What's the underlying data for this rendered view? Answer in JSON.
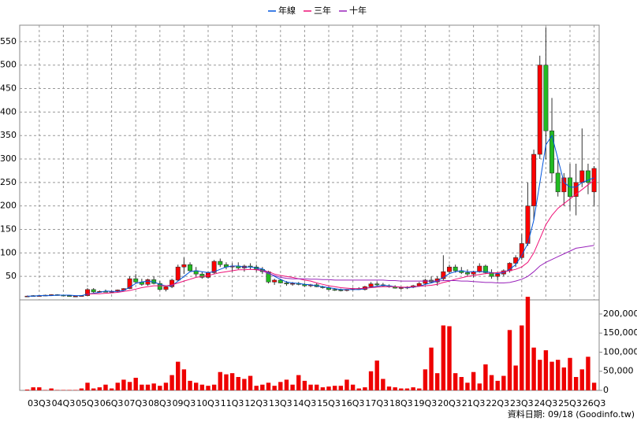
{
  "chart_data": {
    "type": "candlestick",
    "legend": [
      "年線",
      "三年",
      "十年"
    ],
    "footer": "資料日期: 09/18 (Goodinfo.tw)",
    "up_color": "#ff0000",
    "down_color": "#22bb22",
    "volume_color": "#ee0000",
    "grid": true,
    "categories": [
      null,
      null,
      "03Q3",
      null,
      null,
      null,
      "04Q3",
      null,
      null,
      null,
      "05Q3",
      null,
      null,
      null,
      "06Q3",
      null,
      null,
      null,
      "07Q3",
      null,
      null,
      null,
      "08Q3",
      null,
      null,
      null,
      "09Q3",
      null,
      null,
      null,
      "10Q3",
      null,
      null,
      null,
      "11Q3",
      null,
      null,
      null,
      "12Q3",
      null,
      null,
      null,
      "13Q3",
      null,
      null,
      null,
      "14Q3",
      null,
      null,
      null,
      "15Q3",
      null,
      null,
      null,
      "16Q3",
      null,
      null,
      null,
      "17Q3",
      null,
      null,
      null,
      "18Q3",
      null,
      null,
      null,
      "19Q3",
      null,
      null,
      null,
      "20Q3",
      null,
      null,
      null,
      "21Q3",
      null,
      null,
      null,
      "22Q3",
      null,
      null,
      null,
      "23Q3",
      null,
      null,
      null,
      "24Q3",
      null,
      null,
      null,
      "25Q3",
      null,
      null,
      null,
      "26Q3"
    ],
    "ohlc": [
      [
        8,
        9,
        7,
        8
      ],
      [
        8,
        10,
        7,
        9
      ],
      [
        9,
        10,
        8,
        9
      ],
      [
        9,
        11,
        8,
        10
      ],
      [
        10,
        12,
        9,
        11
      ],
      [
        11,
        12,
        9,
        10
      ],
      [
        10,
        11,
        8,
        9
      ],
      [
        9,
        10,
        7,
        8
      ],
      [
        8,
        9,
        7,
        8
      ],
      [
        8,
        10,
        7,
        9
      ],
      [
        9,
        25,
        9,
        22
      ],
      [
        22,
        25,
        15,
        17
      ],
      [
        17,
        20,
        15,
        18
      ],
      [
        18,
        22,
        16,
        17
      ],
      [
        17,
        20,
        15,
        18
      ],
      [
        18,
        22,
        16,
        21
      ],
      [
        21,
        25,
        19,
        24
      ],
      [
        24,
        50,
        23,
        45
      ],
      [
        45,
        55,
        35,
        38
      ],
      [
        38,
        45,
        30,
        33
      ],
      [
        33,
        45,
        30,
        43
      ],
      [
        43,
        50,
        33,
        35
      ],
      [
        35,
        40,
        20,
        22
      ],
      [
        22,
        30,
        18,
        28
      ],
      [
        28,
        45,
        25,
        42
      ],
      [
        42,
        75,
        40,
        70
      ],
      [
        70,
        90,
        55,
        75
      ],
      [
        75,
        80,
        60,
        62
      ],
      [
        62,
        70,
        50,
        55
      ],
      [
        55,
        60,
        45,
        48
      ],
      [
        48,
        60,
        45,
        58
      ],
      [
        58,
        85,
        55,
        82
      ],
      [
        82,
        88,
        70,
        75
      ],
      [
        75,
        80,
        65,
        70
      ],
      [
        70,
        78,
        60,
        72
      ],
      [
        72,
        80,
        65,
        68
      ],
      [
        68,
        75,
        60,
        72
      ],
      [
        72,
        78,
        65,
        70
      ],
      [
        70,
        75,
        60,
        65
      ],
      [
        65,
        70,
        55,
        60
      ],
      [
        60,
        62,
        35,
        38
      ],
      [
        38,
        45,
        32,
        42
      ],
      [
        42,
        45,
        35,
        36
      ],
      [
        36,
        40,
        30,
        34
      ],
      [
        34,
        38,
        30,
        35
      ],
      [
        35,
        38,
        31,
        33
      ],
      [
        33,
        36,
        28,
        30
      ],
      [
        30,
        34,
        27,
        32
      ],
      [
        32,
        35,
        27,
        28
      ],
      [
        28,
        30,
        24,
        26
      ],
      [
        26,
        28,
        20,
        22
      ],
      [
        22,
        25,
        19,
        21
      ],
      [
        21,
        24,
        18,
        20
      ],
      [
        20,
        23,
        18,
        22
      ],
      [
        22,
        26,
        20,
        24
      ],
      [
        24,
        27,
        21,
        22
      ],
      [
        22,
        30,
        20,
        28
      ],
      [
        28,
        38,
        26,
        34
      ],
      [
        34,
        38,
        30,
        32
      ],
      [
        32,
        36,
        28,
        30
      ],
      [
        30,
        33,
        26,
        28
      ],
      [
        28,
        31,
        24,
        25
      ],
      [
        25,
        28,
        22,
        26
      ],
      [
        26,
        29,
        23,
        27
      ],
      [
        27,
        32,
        25,
        30
      ],
      [
        30,
        38,
        28,
        35
      ],
      [
        35,
        45,
        32,
        42
      ],
      [
        42,
        50,
        36,
        38
      ],
      [
        38,
        50,
        30,
        45
      ],
      [
        45,
        95,
        42,
        60
      ],
      [
        60,
        75,
        55,
        70
      ],
      [
        70,
        75,
        58,
        62
      ],
      [
        62,
        70,
        55,
        58
      ],
      [
        58,
        65,
        50,
        55
      ],
      [
        55,
        62,
        48,
        60
      ],
      [
        60,
        78,
        58,
        72
      ],
      [
        72,
        75,
        55,
        58
      ],
      [
        58,
        65,
        45,
        50
      ],
      [
        50,
        58,
        42,
        55
      ],
      [
        55,
        65,
        50,
        62
      ],
      [
        62,
        80,
        58,
        78
      ],
      [
        78,
        95,
        70,
        90
      ],
      [
        90,
        140,
        85,
        120
      ],
      [
        120,
        250,
        115,
        200
      ],
      [
        200,
        320,
        170,
        310
      ],
      [
        310,
        520,
        300,
        500
      ],
      [
        500,
        580,
        300,
        360
      ],
      [
        360,
        430,
        250,
        270
      ],
      [
        270,
        300,
        220,
        230
      ],
      [
        230,
        270,
        200,
        260
      ],
      [
        260,
        290,
        190,
        220
      ],
      [
        220,
        290,
        180,
        250
      ],
      [
        250,
        365,
        240,
        275
      ],
      [
        275,
        290,
        225,
        250
      ],
      [
        230,
        285,
        200,
        280
      ]
    ],
    "volume": [
      2000,
      8000,
      8000,
      1000,
      5000,
      1000,
      1000,
      1000,
      1000,
      5000,
      20000,
      5000,
      8000,
      15000,
      5000,
      20000,
      28000,
      22000,
      33000,
      15000,
      15000,
      18000,
      12000,
      20000,
      40000,
      75000,
      55000,
      25000,
      20000,
      15000,
      12000,
      15000,
      48000,
      42000,
      45000,
      35000,
      30000,
      38000,
      12000,
      15000,
      20000,
      12000,
      22000,
      28000,
      15000,
      40000,
      25000,
      15000,
      15000,
      8000,
      10000,
      12000,
      12000,
      28000,
      15000,
      5000,
      8000,
      50000,
      78000,
      30000,
      10000,
      8000,
      5000,
      5000,
      8000,
      5000,
      55000,
      112000,
      45000,
      170000,
      168000,
      45000,
      35000,
      20000,
      48000,
      18000,
      68000,
      40000,
      25000,
      38000,
      158000,
      65000,
      170000,
      245000,
      112000,
      80000,
      105000,
      75000,
      80000,
      60000,
      85000,
      35000,
      55000,
      88000,
      20000
    ],
    "lines": [
      {
        "name": "年線",
        "color": "#0055dd",
        "values": [
          8,
          8,
          9,
          9,
          9,
          10,
          10,
          10,
          9,
          9,
          12,
          14,
          16,
          19,
          18,
          18,
          20,
          27,
          35,
          38,
          40,
          38,
          33,
          30,
          30,
          40,
          50,
          60,
          62,
          60,
          58,
          60,
          65,
          70,
          72,
          72,
          70,
          70,
          68,
          66,
          58,
          50,
          44,
          38,
          36,
          35,
          33,
          32,
          30,
          28,
          26,
          24,
          22,
          22,
          22,
          22,
          24,
          27,
          29,
          31,
          30,
          28,
          27,
          26,
          27,
          29,
          33,
          36,
          40,
          48,
          56,
          60,
          62,
          60,
          60,
          60,
          60,
          58,
          56,
          58,
          65,
          75,
          95,
          120,
          170,
          250,
          330,
          350,
          300,
          250,
          240,
          240,
          250,
          255,
          260
        ]
      },
      {
        "name": "三年",
        "color": "#ee1177",
        "values": [
          null,
          null,
          null,
          null,
          null,
          null,
          null,
          null,
          null,
          null,
          12,
          13,
          13,
          14,
          15,
          16,
          18,
          20,
          23,
          26,
          28,
          30,
          30,
          30,
          32,
          36,
          40,
          44,
          48,
          50,
          52,
          55,
          58,
          60,
          62,
          64,
          64,
          65,
          64,
          62,
          60,
          55,
          52,
          50,
          48,
          45,
          42,
          40,
          36,
          33,
          30,
          28,
          26,
          25,
          24,
          24,
          25,
          26,
          27,
          28,
          28,
          28,
          27,
          27,
          28,
          29,
          30,
          31,
          33,
          37,
          40,
          44,
          47,
          50,
          52,
          54,
          56,
          57,
          58,
          60,
          62,
          65,
          70,
          80,
          100,
          130,
          160,
          180,
          195,
          205,
          215,
          225,
          235,
          245,
          255
        ]
      },
      {
        "name": "十年",
        "color": "#9922bb",
        "values": [
          null,
          null,
          null,
          null,
          null,
          null,
          null,
          null,
          null,
          null,
          null,
          null,
          null,
          null,
          null,
          null,
          null,
          null,
          null,
          null,
          null,
          null,
          null,
          null,
          null,
          null,
          null,
          null,
          null,
          null,
          null,
          null,
          null,
          null,
          null,
          null,
          null,
          null,
          66,
          62,
          56,
          52,
          48,
          46,
          45,
          45,
          45,
          44,
          44,
          43,
          43,
          42,
          42,
          42,
          42,
          42,
          42,
          42,
          42,
          42,
          41,
          41,
          40,
          40,
          40,
          40,
          40,
          40,
          40,
          41,
          41,
          41,
          40,
          40,
          39,
          38,
          37,
          37,
          36,
          36,
          37,
          40,
          44,
          50,
          60,
          72,
          80,
          86,
          92,
          98,
          104,
          110,
          112,
          114,
          116
        ]
      }
    ],
    "ylim": [
      0,
      585
    ],
    "yticks": [
      50,
      100,
      150,
      200,
      250,
      300,
      350,
      400,
      450,
      500,
      550
    ],
    "y2lim": [
      0,
      237000
    ],
    "y2ticks": [
      0,
      {
        "value": 50000,
        "label": "50,000"
      },
      {
        "value": 100000,
        "label": "100,000"
      },
      {
        "value": 150000,
        "label": "150,000"
      },
      {
        "value": 200000,
        "label": "200,000"
      }
    ]
  }
}
